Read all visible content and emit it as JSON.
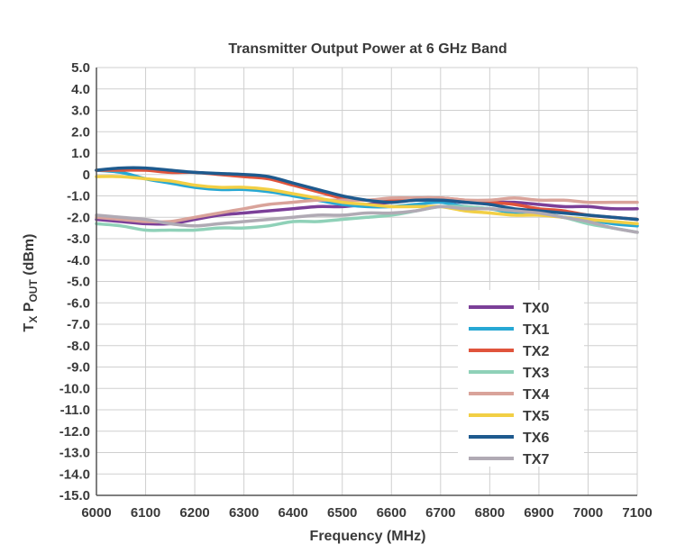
{
  "chart_data": {
    "type": "line",
    "title": "Transmitter Output Power at 6 GHz Band",
    "xlabel": "Frequency (MHz)",
    "ylabel_main": "T",
    "ylabel_sub1": "X",
    "ylabel_mid": " P",
    "ylabel_sub2": "OUT",
    "ylabel_tail": " (dBm)",
    "xlim": [
      6000,
      7100
    ],
    "ylim": [
      -15,
      5
    ],
    "x_ticks": [
      6000,
      6100,
      6200,
      6300,
      6400,
      6500,
      6600,
      6700,
      6800,
      6900,
      7000,
      7100
    ],
    "y_ticks": [
      5,
      4,
      3,
      2,
      1,
      0,
      -1,
      -2,
      -3,
      -4,
      -5,
      -6,
      -7,
      -8,
      -9,
      -10,
      -11,
      -12,
      -13,
      -14,
      -15
    ],
    "x_tick_labels": [
      "6000",
      "6100",
      "6200",
      "6300",
      "6400",
      "6500",
      "6600",
      "6700",
      "6800",
      "6900",
      "7000",
      "7100"
    ],
    "y_tick_labels": [
      "5.0",
      "4.0",
      "3.0",
      "2.0",
      "1.0",
      "0",
      "-1.0",
      "-2.0",
      "-3.0",
      "-4.0",
      "-5.0",
      "-6.0",
      "-7.0",
      "-8.0",
      "-9.0",
      "-10.0",
      "-11.0",
      "-12.0",
      "-13.0",
      "-14.0",
      "-15.0"
    ],
    "grid": true,
    "legend_position": "bottom-right",
    "x": [
      6000,
      6050,
      6100,
      6150,
      6200,
      6250,
      6300,
      6350,
      6400,
      6450,
      6500,
      6550,
      6600,
      6650,
      6700,
      6750,
      6800,
      6850,
      6900,
      6950,
      7000,
      7050,
      7100
    ],
    "series": [
      {
        "name": "TX0",
        "color": "#7b3f98",
        "values": [
          -2.1,
          -2.2,
          -2.3,
          -2.3,
          -2.1,
          -1.9,
          -1.8,
          -1.7,
          -1.6,
          -1.5,
          -1.5,
          -1.4,
          -1.3,
          -1.2,
          -1.2,
          -1.3,
          -1.3,
          -1.3,
          -1.4,
          -1.5,
          -1.5,
          -1.6,
          -1.6
        ]
      },
      {
        "name": "TX1",
        "color": "#27a8d4",
        "values": [
          0.2,
          0.1,
          -0.2,
          -0.4,
          -0.6,
          -0.7,
          -0.7,
          -0.8,
          -1.0,
          -1.2,
          -1.4,
          -1.5,
          -1.5,
          -1.4,
          -1.3,
          -1.5,
          -1.6,
          -1.8,
          -1.8,
          -2.0,
          -2.1,
          -2.3,
          -2.4
        ]
      },
      {
        "name": "TX2",
        "color": "#e0543c",
        "values": [
          0.2,
          0.2,
          0.2,
          0.1,
          0.1,
          0.0,
          -0.1,
          -0.2,
          -0.5,
          -0.8,
          -1.1,
          -1.2,
          -1.2,
          -1.1,
          -1.1,
          -1.2,
          -1.3,
          -1.4,
          -1.6,
          -1.7,
          -1.9,
          -2.0,
          -2.1
        ]
      },
      {
        "name": "TX3",
        "color": "#8fd1b8",
        "values": [
          -2.3,
          -2.4,
          -2.6,
          -2.6,
          -2.6,
          -2.5,
          -2.5,
          -2.4,
          -2.2,
          -2.2,
          -2.1,
          -2.0,
          -1.9,
          -1.7,
          -1.5,
          -1.5,
          -1.6,
          -1.7,
          -1.8,
          -2.0,
          -2.3,
          -2.5,
          -2.7
        ]
      },
      {
        "name": "TX4",
        "color": "#d9a39a",
        "values": [
          -2.0,
          -2.1,
          -2.2,
          -2.2,
          -2.0,
          -1.8,
          -1.6,
          -1.4,
          -1.3,
          -1.2,
          -1.2,
          -1.2,
          -1.1,
          -1.1,
          -1.1,
          -1.2,
          -1.2,
          -1.1,
          -1.2,
          -1.2,
          -1.3,
          -1.3,
          -1.3
        ]
      },
      {
        "name": "TX5",
        "color": "#f2cf45",
        "values": [
          -0.1,
          -0.1,
          -0.2,
          -0.3,
          -0.5,
          -0.6,
          -0.6,
          -0.7,
          -0.9,
          -1.1,
          -1.3,
          -1.4,
          -1.5,
          -1.5,
          -1.5,
          -1.7,
          -1.8,
          -1.9,
          -1.9,
          -2.0,
          -2.1,
          -2.2,
          -2.3
        ]
      },
      {
        "name": "TX6",
        "color": "#1e5a8e",
        "values": [
          0.2,
          0.3,
          0.3,
          0.2,
          0.1,
          0.05,
          0.0,
          -0.1,
          -0.4,
          -0.7,
          -1.0,
          -1.2,
          -1.3,
          -1.2,
          -1.2,
          -1.3,
          -1.4,
          -1.6,
          -1.7,
          -1.8,
          -1.9,
          -2.0,
          -2.1
        ]
      },
      {
        "name": "TX7",
        "color": "#b0aab4",
        "values": [
          -1.9,
          -2.0,
          -2.1,
          -2.3,
          -2.4,
          -2.3,
          -2.2,
          -2.1,
          -2.0,
          -1.9,
          -1.9,
          -1.8,
          -1.8,
          -1.7,
          -1.5,
          -1.6,
          -1.6,
          -1.7,
          -1.8,
          -2.0,
          -2.2,
          -2.5,
          -2.7
        ]
      }
    ]
  }
}
